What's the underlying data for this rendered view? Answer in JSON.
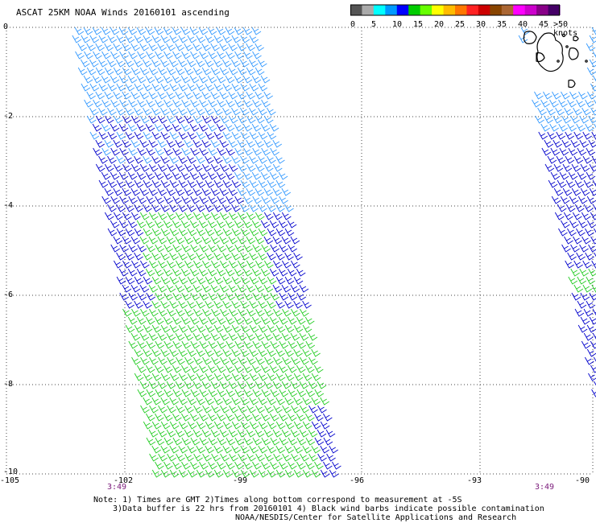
{
  "title": "ASCAT 25KM NOAA Winds 20160101 ascending",
  "colorbar": {
    "unit_label": ">50 knots",
    "ticks": [
      "0",
      "5",
      "10",
      "15",
      "20",
      "25",
      "30",
      "35",
      "40",
      "45"
    ],
    "colors": [
      "#555555",
      "#aaaaaa",
      "#00ffff",
      "#0099ff",
      "#0000ff",
      "#00cc00",
      "#66ff00",
      "#ffff00",
      "#ffbb00",
      "#ff7700",
      "#ff2222",
      "#cc0000",
      "#884400",
      "#aa6633",
      "#ff00ff",
      "#cc00cc",
      "#880088",
      "#440066"
    ]
  },
  "map": {
    "lat_labels": [
      "0",
      "-2",
      "-4",
      "-6",
      "-8",
      "-10"
    ],
    "lon_labels": [
      "-105",
      "-102",
      "-99",
      "-96",
      "-93",
      "-90"
    ],
    "time_labels": [
      "3:49",
      "3:49"
    ],
    "lat_range": [
      -10,
      0
    ],
    "lon_range": [
      -105,
      -90
    ],
    "barb_colors": {
      "light_blue": "#3399ff",
      "blue": "#0000cc",
      "green": "#22cc22"
    },
    "coastline": "Galapagos Islands"
  },
  "notes": [
    "Note: 1) Times are GMT 2)Times along bottom correspond to measurement at -5S",
    "3)Data buffer is 22 hrs from 20160101 4) Black wind barbs indicate possible contamination",
    "NOAA/NESDIS/Center for Satellite Applications and Research"
  ]
}
